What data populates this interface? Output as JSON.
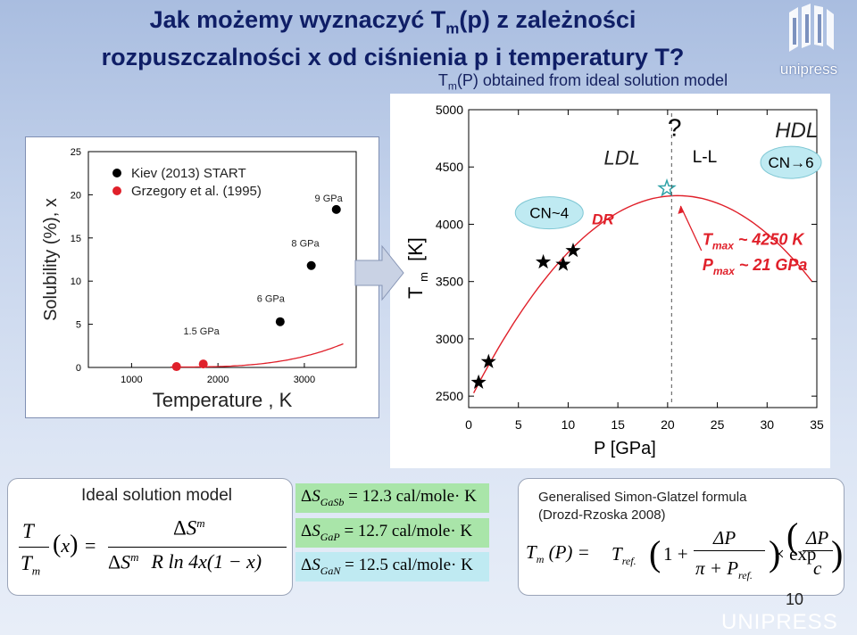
{
  "slide": {
    "title_line1_pre": "Jak możemy wyznaczyć T",
    "title_line1_sub": "m",
    "title_line1_post": "(p) z zależności",
    "title_line2": "rozpuszczalności x od ciśnienia p i temperatury T?",
    "logo_text": "unipress",
    "page_number": "10",
    "footer_brand": "UNIPRESS"
  },
  "left_chart_data": {
    "type": "scatter",
    "ylabel": "Solubility (%), x",
    "xlabel": "Temperature , K",
    "x_ticks": [
      "1000",
      "2000",
      "3000"
    ],
    "y_ticks": [
      "0",
      "5",
      "10",
      "15",
      "20",
      "25"
    ],
    "xlim": [
      500,
      3600
    ],
    "ylim": [
      0,
      25
    ],
    "legend": [
      {
        "label": "Kiev (2013) START",
        "color": "#000000"
      },
      {
        "label": "Grzegory et al. (1995)",
        "color": "#e0202a"
      }
    ],
    "series": [
      {
        "name": "Kiev (2013) START",
        "color": "#000000",
        "points": [
          {
            "x": 2720,
            "y": 5.3
          },
          {
            "x": 3080,
            "y": 11.8
          },
          {
            "x": 3370,
            "y": 18.3
          }
        ]
      },
      {
        "name": "Grzegory et al. (1995)",
        "color": "#e0202a",
        "points": [
          {
            "x": 1520,
            "y": 0.1
          },
          {
            "x": 1830,
            "y": 0.4
          }
        ]
      }
    ],
    "annotations": [
      {
        "text": "1.5 GPa",
        "x": 1600,
        "y": 3.8
      },
      {
        "text": "6 GPa",
        "x": 2450,
        "y": 7.6
      },
      {
        "text": "8 GPa",
        "x": 2850,
        "y": 14.0
      },
      {
        "text": "9 GPa",
        "x": 3120,
        "y": 19.2
      }
    ],
    "curve_color": "#e0202a"
  },
  "chart_data": {
    "type": "scatter",
    "title": "T_m(P) obtained from ideal solution model",
    "title_pre": "T",
    "title_sub": "m",
    "title_post": "(P) obtained from ideal solution model",
    "xlabel": "P   [GPa]",
    "ylabel_main": "T",
    "ylabel_sub": "m",
    "ylabel_unit": "[K]",
    "x_ticks": [
      "0",
      "5",
      "10",
      "15",
      "20",
      "25",
      "30",
      "35"
    ],
    "y_ticks": [
      "2500",
      "3000",
      "3500",
      "4000",
      "4500",
      "5000"
    ],
    "xlim": [
      0,
      35
    ],
    "ylim": [
      2400,
      5000
    ],
    "series": [
      {
        "name": "stars",
        "color": "#000000",
        "points": [
          {
            "x": 1.0,
            "y": 2620
          },
          {
            "x": 2.0,
            "y": 2800
          },
          {
            "x": 7.5,
            "y": 3670
          },
          {
            "x": 9.5,
            "y": 3650
          },
          {
            "x": 10.5,
            "y": 3770
          }
        ]
      }
    ],
    "max_point": {
      "x": 21,
      "y": 4250
    },
    "curve_color": "#e0202a",
    "annotations": {
      "cn4": "CN~4",
      "ldl": "LDL",
      "dr": "DR",
      "question": "?",
      "ll": "L-L",
      "hdl": "HDL",
      "cn6": "CN→6",
      "tmax_label": "T",
      "tmax_sub": "max",
      "tmax_value": "~ 4250 K",
      "pmax_label": "P",
      "pmax_sub": "max",
      "pmax_value": "~ 21 GPa"
    }
  },
  "ideal_model": {
    "heading": "Ideal solution model",
    "T": "T",
    "Tm": "T",
    "m": "m",
    "x": "x",
    "delta": "Δ",
    "S": "S",
    "denominator_rest": "R ln 4x(1 − x)"
  },
  "entropy_values": [
    {
      "sub": "GaSb",
      "value": "= 12.3 cal/mole· K"
    },
    {
      "sub": "GaP",
      "value": "= 12.7 cal/mole· K"
    },
    {
      "sub": "GaN",
      "value": "= 12.5 cal/mole· K"
    }
  ],
  "simon_glatzel": {
    "heading1": "Generalised Simon-Glatzel formula",
    "heading2": "(Drozd-Rzoska 2008)",
    "lhs": "T",
    "lhs_sub": "m",
    "lhs_arg": "(P) =",
    "tref": "T",
    "tref_sub": "ref.",
    "one_plus": "1 +",
    "deltaP": "ΔP",
    "pi_plus": "π + P",
    "pref_sub": "ref.",
    "times_exp": "× exp",
    "c": "c"
  }
}
